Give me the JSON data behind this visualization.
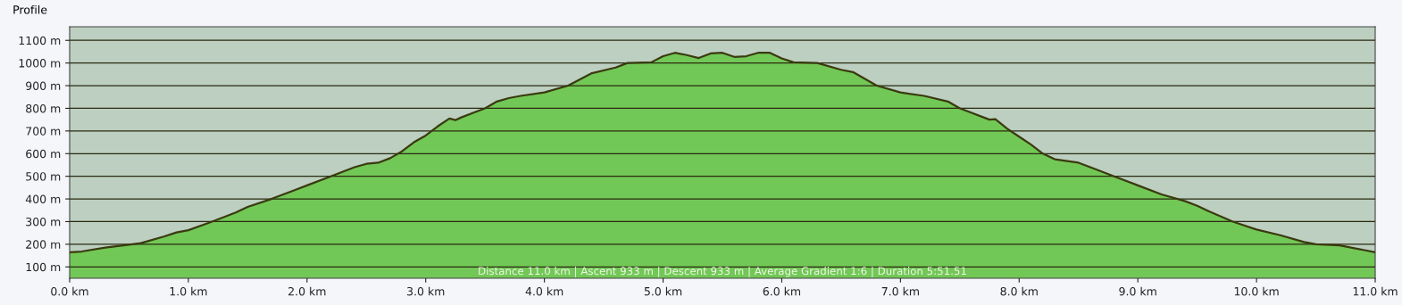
{
  "chart_data": {
    "type": "area",
    "title": "Profile",
    "x": [
      0,
      0.1,
      0.3,
      0.5,
      0.6,
      0.8,
      0.9,
      1.0,
      1.2,
      1.4,
      1.5,
      1.7,
      1.9,
      2.0,
      2.2,
      2.4,
      2.5,
      2.6,
      2.7,
      2.8,
      2.9,
      3.0,
      3.1,
      3.2,
      3.25,
      3.3,
      3.4,
      3.5,
      3.6,
      3.7,
      3.8,
      4.0,
      4.2,
      4.4,
      4.6,
      4.7,
      4.9,
      5.0,
      5.1,
      5.2,
      5.3,
      5.4,
      5.5,
      5.6,
      5.7,
      5.8,
      5.9,
      6.0,
      6.1,
      6.3,
      6.5,
      6.6,
      6.8,
      7.0,
      7.2,
      7.4,
      7.5,
      7.6,
      7.7,
      7.75,
      7.8,
      7.9,
      8.0,
      8.1,
      8.2,
      8.3,
      8.5,
      8.6,
      8.8,
      9.0,
      9.2,
      9.4,
      9.5,
      9.6,
      9.8,
      10.0,
      10.2,
      10.4,
      10.5,
      10.7,
      10.9,
      11.0
    ],
    "series": [
      {
        "color": "#72c856",
        "values": [
          165,
          168,
          185,
          198,
          205,
          235,
          252,
          262,
          300,
          340,
          365,
          400,
          440,
          460,
          500,
          540,
          555,
          560,
          580,
          610,
          650,
          680,
          720,
          755,
          748,
          760,
          780,
          800,
          830,
          845,
          855,
          870,
          900,
          955,
          980,
          1000,
          1003,
          1030,
          1045,
          1035,
          1022,
          1042,
          1045,
          1027,
          1030,
          1045,
          1045,
          1020,
          1003,
          1000,
          970,
          960,
          900,
          870,
          855,
          830,
          800,
          780,
          760,
          750,
          752,
          710,
          675,
          640,
          600,
          575,
          560,
          540,
          500,
          460,
          420,
          390,
          370,
          345,
          300,
          265,
          240,
          210,
          200,
          195,
          175,
          165
        ]
      }
    ],
    "xlim": [
      0,
      11
    ],
    "xticks": [
      {
        "value": 0,
        "label": "0.0 km"
      },
      {
        "value": 1,
        "label": "1.0 km"
      },
      {
        "value": 2,
        "label": "2.0 km"
      },
      {
        "value": 3,
        "label": "3.0 km"
      },
      {
        "value": 4,
        "label": "4.0 km"
      },
      {
        "value": 5,
        "label": "5.0 km"
      },
      {
        "value": 6,
        "label": "6.0 km"
      },
      {
        "value": 7,
        "label": "7.0 km"
      },
      {
        "value": 8,
        "label": "8.0 km"
      },
      {
        "value": 9,
        "label": "9.0 km"
      },
      {
        "value": 10,
        "label": "10.0 km"
      },
      {
        "value": 11,
        "label": "11.0 km"
      }
    ],
    "ylim": [
      50,
      1160
    ],
    "yticks": [
      {
        "value": 100,
        "label": "100 m"
      },
      {
        "value": 200,
        "label": "200 m"
      },
      {
        "value": 300,
        "label": "300 m"
      },
      {
        "value": 400,
        "label": "400 m"
      },
      {
        "value": 500,
        "label": "500 m"
      },
      {
        "value": 600,
        "label": "600 m"
      },
      {
        "value": 700,
        "label": "700 m"
      },
      {
        "value": 800,
        "label": "800 m"
      },
      {
        "value": 900,
        "label": "900 m"
      },
      {
        "value": 1000,
        "label": "1000 m"
      },
      {
        "value": 1100,
        "label": "1100 m"
      }
    ],
    "grid": "y",
    "annotations": [
      "Distance 11.0 km | Ascent 933 m | Descent 933 m | Average Gradient 1:6 | Duration 5:51.51"
    ]
  }
}
